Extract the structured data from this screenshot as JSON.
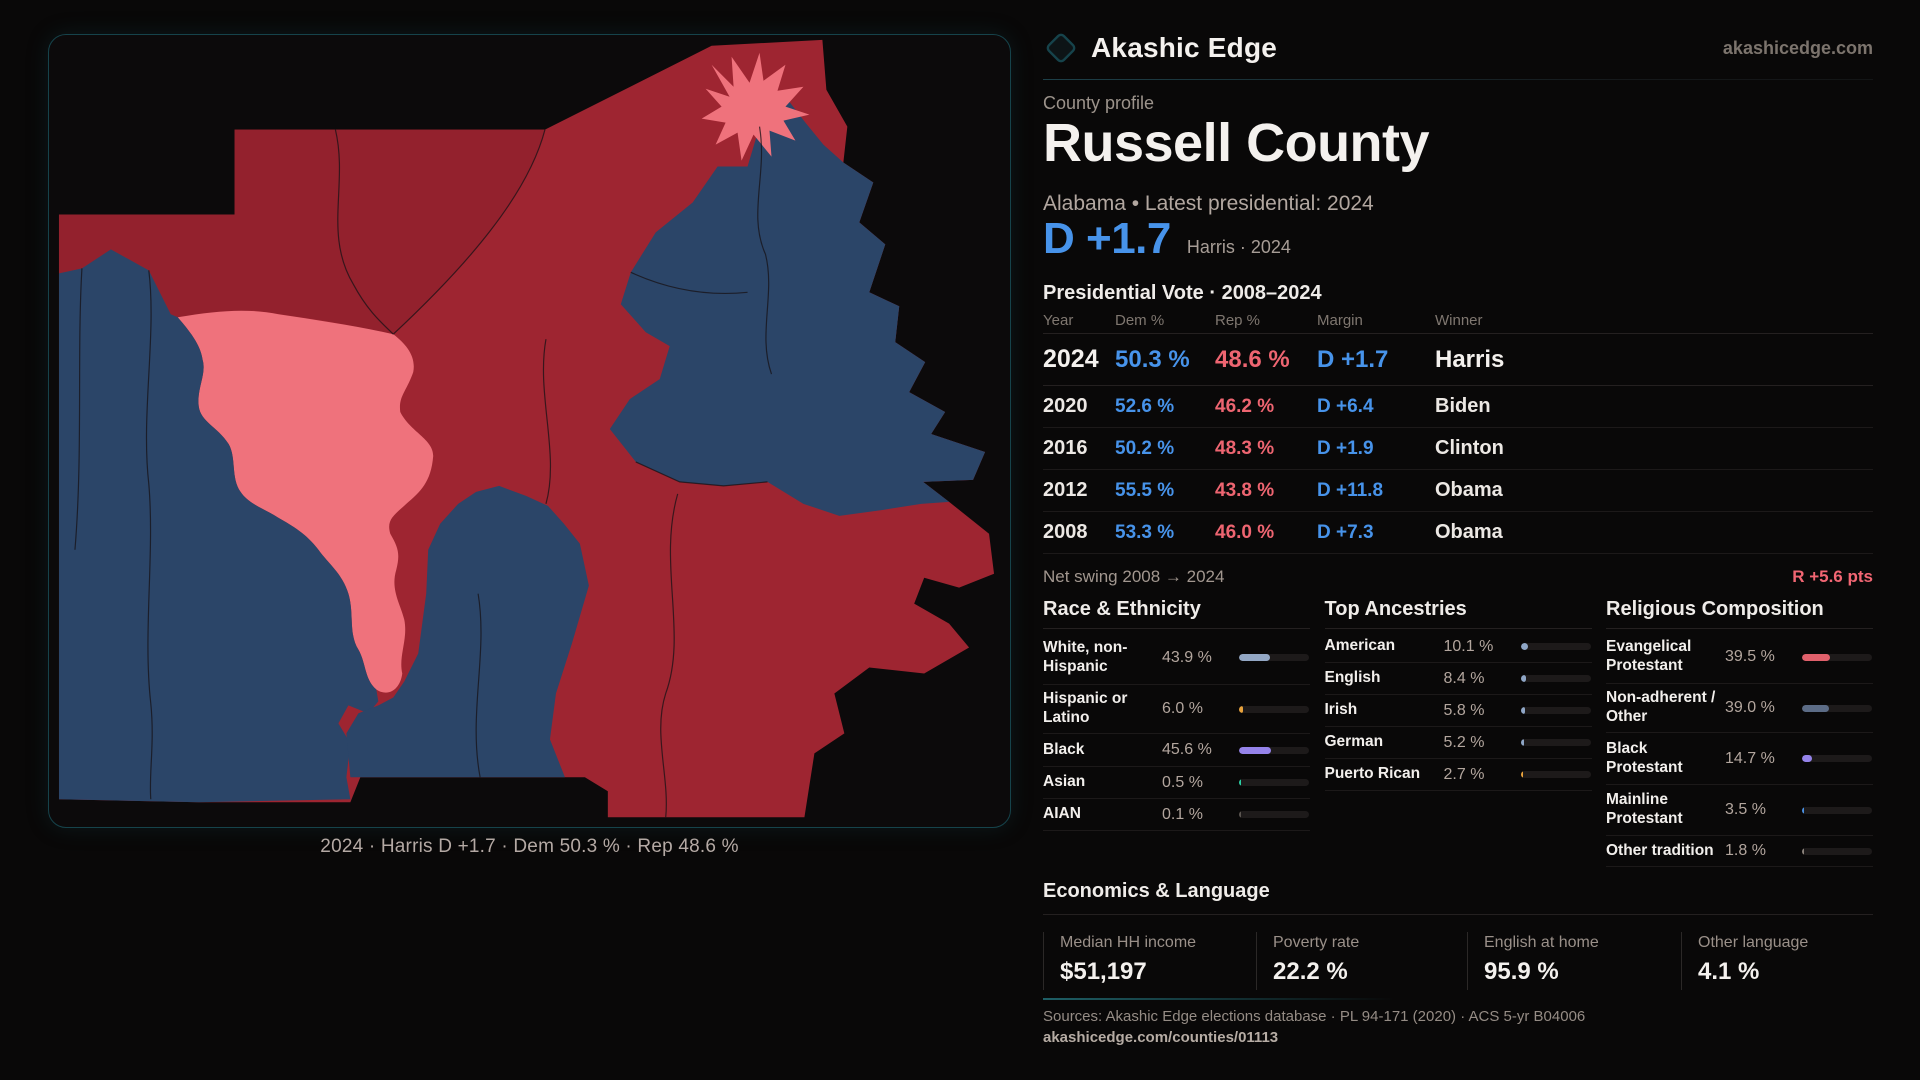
{
  "brand": {
    "name": "Akashic Edge",
    "domain": "akashicedge.com"
  },
  "page": {
    "eyebrow": "County profile",
    "title": "Russell County",
    "subtitle": "Alabama • Latest presidential: 2024"
  },
  "headline": {
    "margin": "D +1.7",
    "note": "Harris · 2024"
  },
  "results": {
    "heading": "Presidential Vote · 2008–2024",
    "columns": {
      "year": "Year",
      "dem": "Dem %",
      "rep": "Rep %",
      "margin": "Margin",
      "winner": "Winner"
    },
    "rows": [
      {
        "year": "2024",
        "dem": "50.3 %",
        "rep": "48.6 %",
        "margin": "D +1.7",
        "winner": "Harris"
      },
      {
        "year": "2020",
        "dem": "52.6 %",
        "rep": "46.2 %",
        "margin": "D +6.4",
        "winner": "Biden"
      },
      {
        "year": "2016",
        "dem": "50.2 %",
        "rep": "48.3 %",
        "margin": "D +1.9",
        "winner": "Clinton"
      },
      {
        "year": "2012",
        "dem": "55.5 %",
        "rep": "43.8 %",
        "margin": "D +11.8",
        "winner": "Obama"
      },
      {
        "year": "2008",
        "dem": "53.3 %",
        "rep": "46.0 %",
        "margin": "D +7.3",
        "winner": "Obama"
      }
    ],
    "net_swing_label": "Net swing 2008 → 2024",
    "net_swing_value": "R +5.6 pts"
  },
  "demographics": {
    "groups": [
      {
        "heading": "Race & Ethnicity",
        "rows": [
          {
            "label": "White, non-Hispanic",
            "value": "43.9 %",
            "pct": 43.9,
            "color": "#93a7c4"
          },
          {
            "label": "Hispanic or Latino",
            "value": "6.0 %",
            "pct": 6.0,
            "color": "#e8a23c"
          },
          {
            "label": "Black",
            "value": "45.6 %",
            "pct": 45.6,
            "color": "#9583ea"
          },
          {
            "label": "Asian",
            "value": "0.5 %",
            "pct": 0.5,
            "color": "#2bcfa4"
          },
          {
            "label": "AIAN",
            "value": "0.1 %",
            "pct": 0.1,
            "color": "#5a5550"
          }
        ]
      },
      {
        "heading": "Top Ancestries",
        "rows": [
          {
            "label": "American",
            "value": "10.1 %",
            "pct": 10.1,
            "color": "#8fa6c6"
          },
          {
            "label": "English",
            "value": "8.4 %",
            "pct": 8.4,
            "color": "#8fa6c6"
          },
          {
            "label": "Irish",
            "value": "5.8 %",
            "pct": 5.8,
            "color": "#8fa6c6"
          },
          {
            "label": "German",
            "value": "5.2 %",
            "pct": 5.2,
            "color": "#8fa6c6"
          },
          {
            "label": "Puerto Rican",
            "value": "2.7 %",
            "pct": 2.7,
            "color": "#e8a23c"
          }
        ]
      },
      {
        "heading": "Religious Composition",
        "rows": [
          {
            "label": "Evangelical Protestant",
            "value": "39.5 %",
            "pct": 39.5,
            "color": "#e0606b"
          },
          {
            "label": "Non-adherent / Other",
            "value": "39.0 %",
            "pct": 39.0,
            "color": "#5c6c86"
          },
          {
            "label": "Black Protestant",
            "value": "14.7 %",
            "pct": 14.7,
            "color": "#9583ea"
          },
          {
            "label": "Mainline Protestant",
            "value": "3.5 %",
            "pct": 3.5,
            "color": "#4a90e2"
          },
          {
            "label": "Other tradition",
            "value": "1.8 %",
            "pct": 1.8,
            "color": "#8a827b"
          }
        ]
      }
    ]
  },
  "economics": {
    "heading": "Economics & Language",
    "stats": [
      {
        "label": "Median HH income",
        "value": "$51,197"
      },
      {
        "label": "Poverty rate",
        "value": "22.2 %"
      },
      {
        "label": "English at home",
        "value": "95.9 %"
      },
      {
        "label": "Other language",
        "value": "4.1 %"
      }
    ]
  },
  "footer": {
    "sources": "Sources: Akashic Edge elections database · PL 94-171 (2020) · ACS 5-yr B04006",
    "permalink": "akashicedge.com/counties/01113"
  },
  "map": {
    "caption": "2024 · Harris D +1.7 · Dem 50.3 % · Rep 48.6 %",
    "colors": {
      "background": "#0c0a0b",
      "rep_base": "#9e2531",
      "rep_dark": "#93212d",
      "rep_light": "#ef727c",
      "dem": "#2b4568",
      "boundary": "#171115",
      "accent": "#16434b"
    }
  }
}
